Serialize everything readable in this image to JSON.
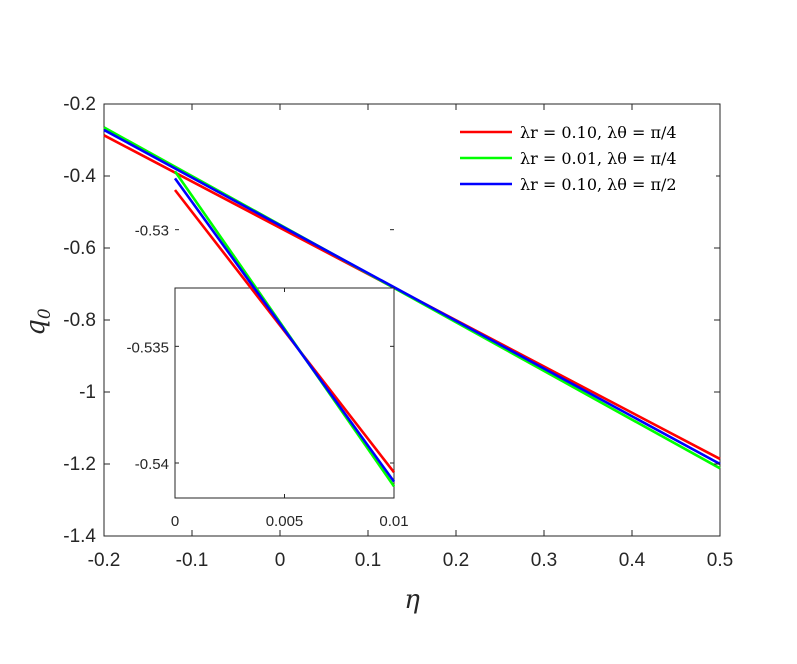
{
  "chart_data": [
    {
      "type": "line",
      "xlabel": "η",
      "ylabel": "q",
      "ylabel_sub": "0",
      "xlim": [
        -0.2,
        0.5
      ],
      "ylim": [
        -1.4,
        -0.2
      ],
      "xticks": [
        "-0.2",
        "-0.1",
        "0",
        "0.1",
        "0.2",
        "0.3",
        "0.4",
        "0.5"
      ],
      "yticks": [
        "-0.2",
        "-0.4",
        "-0.6",
        "-0.8",
        "-1",
        "-1.2",
        "-1.4"
      ],
      "grid": false,
      "legend_placement": "top-right",
      "series": [
        {
          "name": "λr = 0.10, λθ = π/4",
          "color": "#ff0000",
          "x": [
            -0.2,
            0.5
          ],
          "y": [
            -0.287,
            -1.186
          ]
        },
        {
          "name": "λr = 0.01, λθ = π/4",
          "color": "#00ff00",
          "x": [
            -0.2,
            0.5
          ],
          "y": [
            -0.265,
            -1.212
          ]
        },
        {
          "name": "λr = 0.10, λθ = π/2",
          "color": "#0000ff",
          "x": [
            -0.2,
            0.5
          ],
          "y": [
            -0.272,
            -1.2
          ]
        }
      ]
    },
    {
      "type": "line",
      "xlim": [
        0,
        0.01
      ],
      "ylim": [
        -0.5415,
        -0.5325
      ],
      "xticks": [
        "0",
        "0.005",
        "0.01"
      ],
      "yticks": [
        "-0.53",
        "-0.535",
        "-0.54"
      ],
      "grid": false,
      "series": [
        {
          "color": "#ff0000",
          "x": [
            0,
            0.01
          ],
          "y": [
            -0.5283,
            -0.5404
          ]
        },
        {
          "color": "#00ff00",
          "x": [
            0,
            0.01
          ],
          "y": [
            -0.5275,
            -0.541
          ]
        },
        {
          "color": "#0000ff",
          "x": [
            0,
            0.01
          ],
          "y": [
            -0.5278,
            -0.5408
          ]
        }
      ]
    }
  ]
}
